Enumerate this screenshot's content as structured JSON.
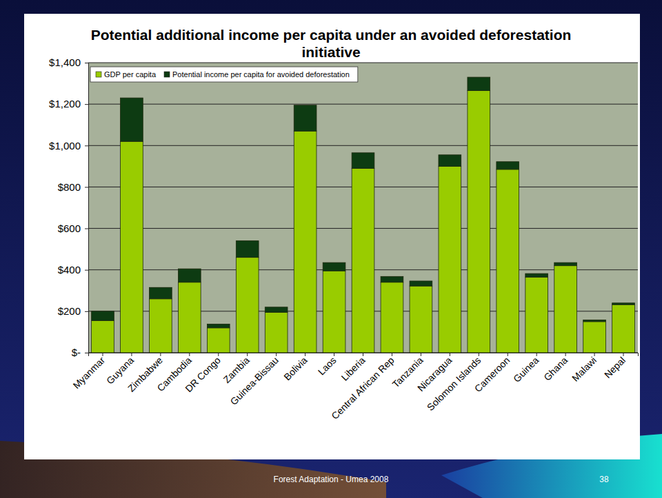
{
  "chart_data": {
    "type": "bar",
    "title": "Potential additional income per capita under an avoided deforestation initiative",
    "categories": [
      "Myanmar",
      "Guyana",
      "Zimbabwe",
      "Cambodia",
      "DR Congo",
      "Zambia",
      "Guinea-Bissau",
      "Bolivia",
      "Laos",
      "Liberia",
      "Central African Rep",
      "Tanzania",
      "Nicaragua",
      "Solomon Islands",
      "Cameroon",
      "Guinea",
      "Ghana",
      "Malawi",
      "Nepal"
    ],
    "series": [
      {
        "name": "GDP per capita",
        "color": "#99cc00",
        "values": [
          155,
          1020,
          260,
          340,
          120,
          460,
          195,
          1070,
          395,
          890,
          340,
          322,
          900,
          1265,
          885,
          365,
          420,
          150,
          232
        ]
      },
      {
        "name": "Potential income per capita for avoided deforestation",
        "color": "#0d3b12",
        "values": [
          45,
          210,
          55,
          65,
          18,
          80,
          25,
          125,
          40,
          75,
          28,
          24,
          55,
          65,
          37,
          17,
          15,
          8,
          8
        ]
      }
    ],
    "ylim": [
      0,
      1400
    ],
    "yticks": [
      {
        "value": 0,
        "label": "$-"
      },
      {
        "value": 200,
        "label": "$200"
      },
      {
        "value": 400,
        "label": "$400"
      },
      {
        "value": 600,
        "label": "$600"
      },
      {
        "value": 800,
        "label": "$800"
      },
      {
        "value": 1000,
        "label": "$1,000"
      },
      {
        "value": 1200,
        "label": "$1,200"
      },
      {
        "value": 1400,
        "label": "$1,400"
      }
    ],
    "stacked": true,
    "grid": true,
    "legend": "top-left"
  },
  "slide": {
    "footer": "Forest Adaptation - Umea 2008",
    "page_number": 38
  }
}
